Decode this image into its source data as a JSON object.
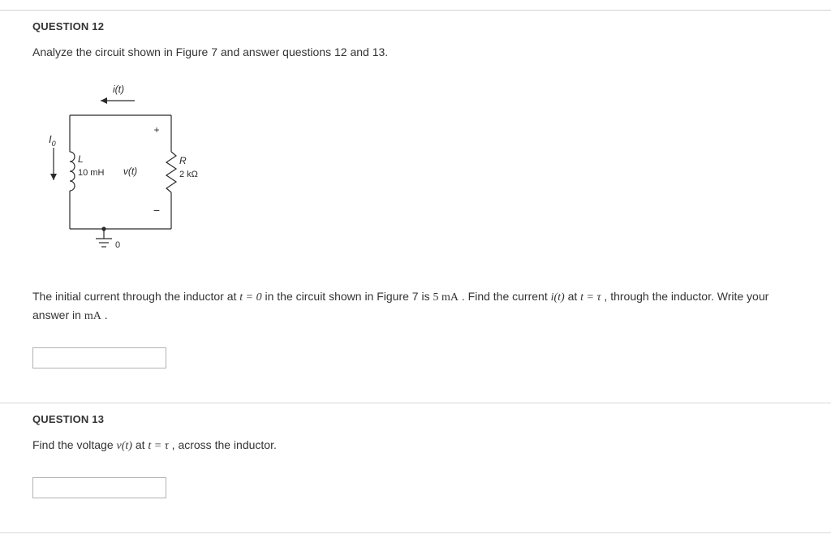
{
  "q12": {
    "header": "QUESTION 12",
    "intro": "Analyze the circuit shown in Figure 7 and answer questions 12 and 13.",
    "prompt_pre": "The initial current through the inductor at ",
    "eq1": "t = 0",
    "prompt_mid1": " in the circuit shown in Figure 7 is ",
    "val1": "5 mA",
    "prompt_mid2": " . Find the current ",
    "func1": "i(t)",
    "prompt_mid3": " at ",
    "eq2": "t = τ",
    "prompt_mid4": " , through the inductor. Write your answer in ",
    "unit": "mA",
    "period": " ."
  },
  "q13": {
    "header": "QUESTION 13",
    "prompt_pre": "Find the voltage ",
    "func1": "v(t)",
    "prompt_mid1": " at ",
    "eq1": "t = τ",
    "prompt_post": " , across the inductor."
  },
  "circuit": {
    "i_label": "i(t)",
    "I0_label": "I",
    "I0_sub": "0",
    "L_label": "L",
    "L_value": "10 mH",
    "v_label": "v(t)",
    "R_label": "R",
    "R_value": "2 kΩ",
    "plus": "+",
    "minus": "−",
    "zero": "0",
    "colors": {
      "stroke": "#2b2b2b",
      "text": "#2b2b2b",
      "circuit_font": "Arial, Helvetica, sans-serif",
      "stroke_width": 1.2
    }
  }
}
